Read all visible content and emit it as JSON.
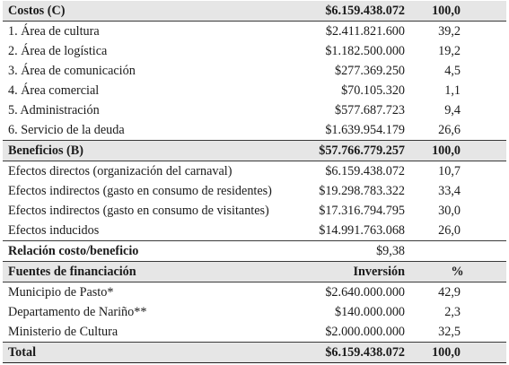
{
  "costs": {
    "header": {
      "label": "Costos (C)",
      "amount": "$6.159.438.072",
      "pct": "100,0"
    },
    "rows": [
      {
        "label": "1. Área de cultura",
        "amount": "$2.411.821.600",
        "pct": "39,2"
      },
      {
        "label": "2. Área de logística",
        "amount": "$1.182.500.000",
        "pct": "19,2"
      },
      {
        "label": "3. Área de comunicación",
        "amount": "$277.369.250",
        "pct": "4,5"
      },
      {
        "label": "4. Área comercial",
        "amount": "$70.105.320",
        "pct": "1,1"
      },
      {
        "label": "5. Administración",
        "amount": "$577.687.723",
        "pct": "9,4"
      },
      {
        "label": "6. Servicio de la deuda",
        "amount": "$1.639.954.179",
        "pct": "26,6"
      }
    ]
  },
  "benefits": {
    "header": {
      "label": "Beneficios (B)",
      "amount": "$57.766.779.257",
      "pct": "100,0"
    },
    "rows": [
      {
        "label": "Efectos directos (organización del carnaval)",
        "amount": "$6.159.438.072",
        "pct": "10,7"
      },
      {
        "label": "Efectos indirectos (gasto en consumo de residentes)",
        "amount": "$19.298.783.322",
        "pct": "33,4"
      },
      {
        "label": "Efectos indirectos (gasto en consumo de visitantes)",
        "amount": "$17.316.794.795",
        "pct": "30,0"
      },
      {
        "label": "Efectos inducidos",
        "amount": "$14.991.763.068",
        "pct": "26,0"
      }
    ]
  },
  "ratio": {
    "label": "Relación costo/beneficio",
    "value": "$9,38"
  },
  "funding": {
    "header": {
      "label": "Fuentes de financiación",
      "amount": "Inversión",
      "pct": "%"
    },
    "rows": [
      {
        "label": "Municipio de Pasto*",
        "amount": "$2.640.000.000",
        "pct": "42,9"
      },
      {
        "label": "Departamento de Nariño**",
        "amount": "$140.000.000",
        "pct": "2,3"
      },
      {
        "label": "Ministerio de Cultura",
        "amount": "$2.000.000.000",
        "pct": "32,5"
      }
    ]
  },
  "total": {
    "label": "Total",
    "amount": "$6.159.438.072",
    "pct": "100,0"
  }
}
